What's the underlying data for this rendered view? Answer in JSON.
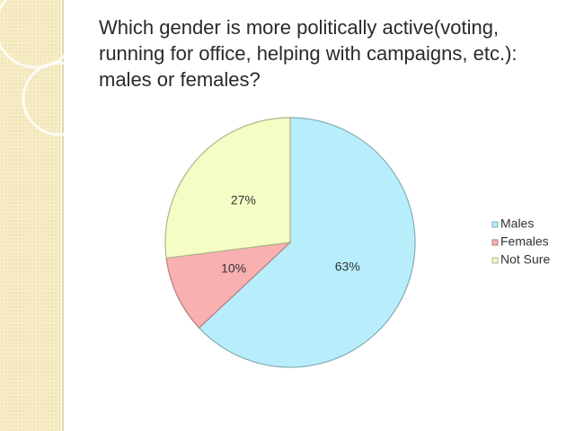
{
  "chart_data": {
    "type": "pie",
    "title": "Which gender is more politically active(voting, running for office, helping with campaigns, etc.): males or females?",
    "categories": [
      "Males",
      "Females",
      "Not Sure"
    ],
    "values": [
      63,
      10,
      27
    ],
    "value_labels": [
      "63%",
      "10%",
      "27%"
    ],
    "colors": [
      "#b8eefc",
      "#f9b0b0",
      "#f5fcc4"
    ],
    "legend": "right"
  }
}
